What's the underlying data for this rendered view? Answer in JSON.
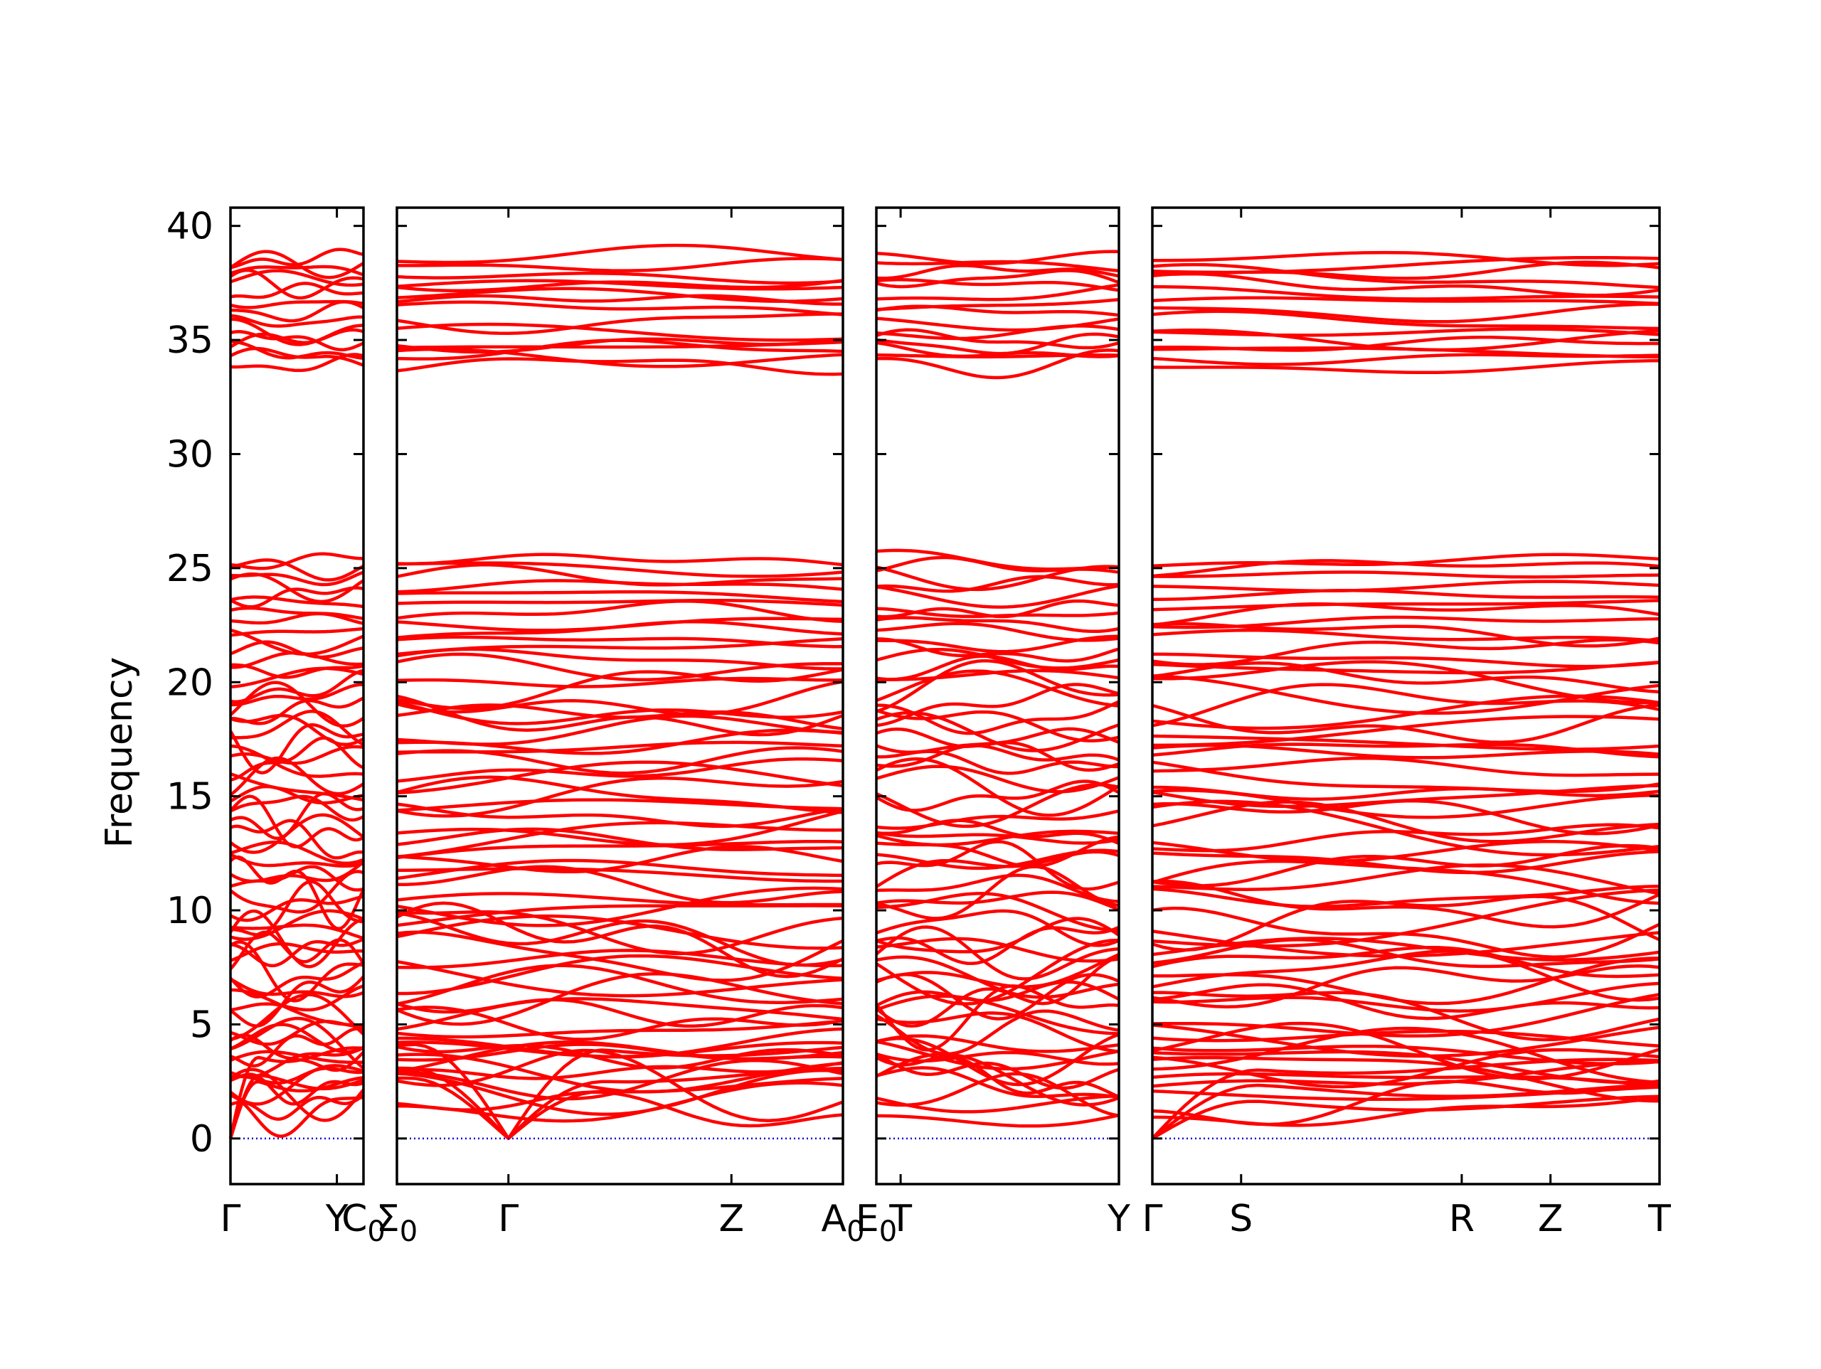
{
  "chart_data": {
    "type": "line",
    "title": "",
    "xlabel": "",
    "ylabel": "Frequency",
    "ylim": [
      -2,
      40.8
    ],
    "yticks": [
      0,
      5,
      10,
      15,
      20,
      25,
      30,
      35,
      40
    ],
    "grid": false,
    "legend": "none",
    "colors": {
      "bands": "#ff0000",
      "zero_line": "#0000cc",
      "axes": "#000000"
    },
    "panels": [
      {
        "path": [
          "Γ",
          "Y"
        ],
        "xticks": [
          {
            "label": "Γ",
            "pos": 0
          },
          {
            "label": "Y",
            "pos": 0.8
          },
          {
            "label": "C",
            "pos": 1.0,
            "sub": "0"
          }
        ],
        "seed": 11
      },
      {
        "path": [
          "Σ0",
          "Γ",
          "Z",
          "A0"
        ],
        "xticks": [
          {
            "label": "Σ",
            "pos": 0,
            "sub": "0"
          },
          {
            "label": "Γ",
            "pos": 0.25
          },
          {
            "label": "Z",
            "pos": 0.75
          },
          {
            "label": "A",
            "pos": 1.0,
            "sub": "0"
          }
        ],
        "seed": 23
      },
      {
        "path": [
          "E0",
          "T",
          "Y"
        ],
        "xticks": [
          {
            "label": "E",
            "pos": 0,
            "sub": "0"
          },
          {
            "label": "T",
            "pos": 0.1
          },
          {
            "label": "Y",
            "pos": 1.0
          }
        ],
        "seed": 37
      },
      {
        "path": [
          "Γ",
          "S",
          "R",
          "Z",
          "T"
        ],
        "xticks": [
          {
            "label": "Γ",
            "pos": 0
          },
          {
            "label": "S",
            "pos": 0.175
          },
          {
            "label": "R",
            "pos": 0.61
          },
          {
            "label": "Z",
            "pos": 0.785
          },
          {
            "label": "T",
            "pos": 1.0
          }
        ],
        "seed": 53
      }
    ],
    "band_levels": {
      "acoustic_start": [
        0,
        0,
        0
      ],
      "optical_low": [
        1.2,
        1.6,
        2.0,
        2.3,
        2.6,
        2.9,
        3.2,
        3.5,
        3.7,
        3.9,
        4.1,
        4.4,
        4.8,
        5.2,
        5.6,
        6.0,
        6.3,
        6.6,
        7.0,
        7.3,
        7.6,
        8.0,
        8.3,
        8.7,
        9.0,
        9.4,
        9.8,
        10.2,
        10.6,
        11.0,
        11.4,
        11.8,
        12.2,
        12.6,
        13.0,
        13.4,
        13.8,
        14.2,
        14.6,
        15.0,
        15.4,
        15.8,
        16.2,
        16.6,
        17.0,
        17.4,
        17.8,
        18.2,
        18.6,
        19.0,
        19.4,
        19.8,
        20.2,
        20.6,
        21.0,
        21.4,
        21.8,
        22.2,
        22.6,
        23.0,
        23.4,
        23.8,
        24.2,
        24.6,
        25.0,
        25.3
      ],
      "optical_high": [
        33.9,
        34.2,
        34.5,
        34.8,
        35.0,
        35.3,
        35.8,
        36.2,
        36.6,
        37.0,
        37.4,
        37.7,
        38.0,
        38.3,
        38.6
      ]
    }
  }
}
